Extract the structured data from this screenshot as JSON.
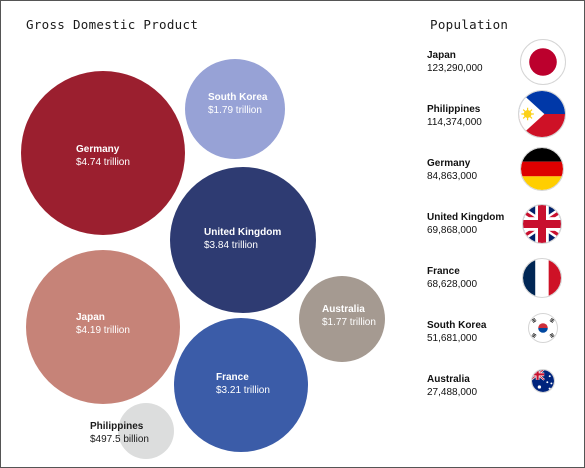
{
  "titles": {
    "gdp": "Gross Domestic Product",
    "population": "Population"
  },
  "chart_data": [
    {
      "type": "bubble",
      "title": "Gross Domestic Product",
      "unit": "trillion USD",
      "points": [
        {
          "name": "Germany",
          "label": "$4.74 trillion",
          "value": 4.74,
          "color": "#9b1f2f"
        },
        {
          "name": "South Korea",
          "label": "$1.79 trillion",
          "value": 1.79,
          "color": "#97a2d6"
        },
        {
          "name": "United Kingdom",
          "label": "$3.84 trillion",
          "value": 3.84,
          "color": "#2e3b72"
        },
        {
          "name": "Japan",
          "label": "$4.19 trillion",
          "value": 4.19,
          "color": "#c68378"
        },
        {
          "name": "Australia",
          "label": "$1.77 trillion",
          "value": 1.77,
          "color": "#a59a91"
        },
        {
          "name": "France",
          "label": "$3.21 trillion",
          "value": 3.21,
          "color": "#3b5ca8"
        },
        {
          "name": "Philippines",
          "label": "$497.5 billion",
          "value": 0.4975,
          "color": "#dcdddd"
        }
      ]
    },
    {
      "type": "table",
      "title": "Population",
      "rows": [
        {
          "name": "Japan",
          "population": "123,290,000",
          "value": 123290000,
          "flag": "japan-flag"
        },
        {
          "name": "Philippines",
          "population": "114,374,000",
          "value": 114374000,
          "flag": "philippines-flag"
        },
        {
          "name": "Germany",
          "population": "84,863,000",
          "value": 84863000,
          "flag": "germany-flag"
        },
        {
          "name": "United Kingdom",
          "population": "69,868,000",
          "value": 69868000,
          "flag": "united-kingdom-flag"
        },
        {
          "name": "France",
          "population": "68,628,000",
          "value": 68628000,
          "flag": "france-flag"
        },
        {
          "name": "South Korea",
          "population": "51,681,000",
          "value": 51681000,
          "flag": "south-korea-flag"
        },
        {
          "name": "Australia",
          "population": "27,488,000",
          "value": 27488000,
          "flag": "australia-flag"
        }
      ]
    }
  ]
}
